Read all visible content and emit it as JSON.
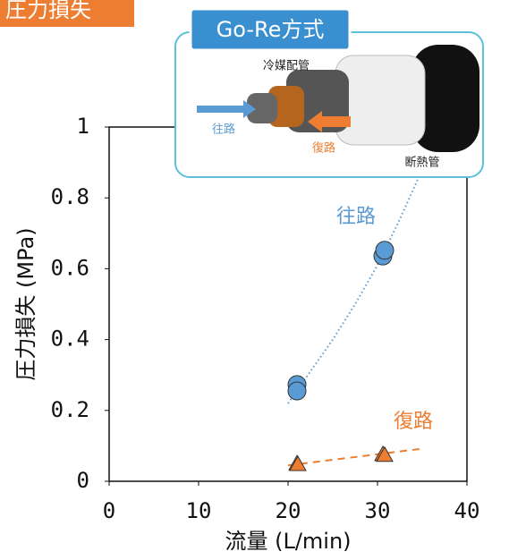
{
  "badge": "圧力損失",
  "inset": {
    "title": "Go-Re方式",
    "pipe": "冷媒配管",
    "outward": "往路",
    "return": "復路",
    "insulation": "断熱管"
  },
  "chart_data": {
    "type": "scatter",
    "xlabel": "流量 (L/min)",
    "ylabel": "圧力損失 (MPa)",
    "xlim": [
      0,
      40
    ],
    "ylim": [
      0,
      1
    ],
    "xticks": [
      0,
      10,
      20,
      30,
      40
    ],
    "yticks": [
      0,
      0.2,
      0.4,
      0.6,
      0.8,
      1
    ],
    "series": [
      {
        "name": "往路",
        "color": "#5b9bd5",
        "marker": "circle",
        "x": [
          21,
          21,
          30.6,
          30.8
        ],
        "values": [
          0.273,
          0.255,
          0.636,
          0.652
        ],
        "trend": {
          "style": "dotted",
          "x": [
            20,
            22.5,
            25,
            27.5,
            30,
            32.5,
            35
          ],
          "values": [
            0.22,
            0.31,
            0.4,
            0.5,
            0.61,
            0.74,
            0.88
          ]
        }
      },
      {
        "name": "復路",
        "color": "#ed7d31",
        "marker": "triangle",
        "x": [
          21,
          21.1,
          30.6,
          30.8
        ],
        "values": [
          0.05,
          0.048,
          0.076,
          0.074
        ],
        "trend": {
          "style": "dashed",
          "x": [
            20,
            35
          ],
          "values": [
            0.045,
            0.092
          ]
        }
      }
    ]
  }
}
